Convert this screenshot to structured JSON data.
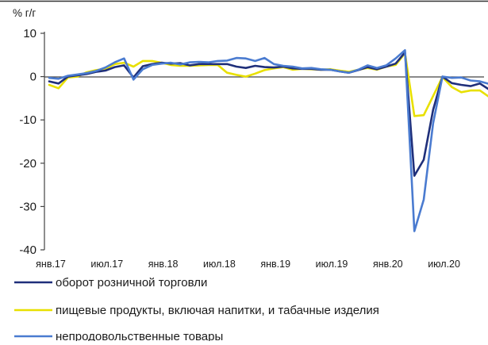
{
  "chart_data": {
    "type": "line",
    "unit_label": "% г/г",
    "y_ticks": [
      10,
      0,
      -10,
      -20,
      -30,
      -40
    ],
    "ylim": [
      -40,
      10
    ],
    "x_labels": [
      "янв.17",
      "июл.17",
      "янв.18",
      "июл.18",
      "янв.19",
      "июл.19",
      "янв.20",
      "июл.20"
    ],
    "x_start": "2017-01",
    "grid": false,
    "legend_position": "bottom",
    "series": [
      {
        "name": "оборот розничной торговли",
        "color": "#1f2f7a",
        "values": [
          -1.1,
          -1.6,
          0.0,
          0.3,
          0.6,
          1.1,
          1.4,
          2.2,
          2.6,
          -0.2,
          2.4,
          2.9,
          3.2,
          3.0,
          3.1,
          2.6,
          2.9,
          2.9,
          2.9,
          2.9,
          2.3,
          2.0,
          2.5,
          2.2,
          2.1,
          2.3,
          1.9,
          1.8,
          1.8,
          1.6,
          1.6,
          1.2,
          0.9,
          1.5,
          2.2,
          1.7,
          2.3,
          3.0,
          5.6,
          -22.9,
          -19.2,
          -7.7,
          0.0,
          -1.5,
          -1.9,
          -2.2,
          -1.6,
          -3.0
        ]
      },
      {
        "name": "пищевые продукты, включая напитки, и табачные изделия",
        "color": "#e8e000",
        "values": [
          -1.9,
          -2.7,
          -0.2,
          0.0,
          1.0,
          1.5,
          1.8,
          2.9,
          3.2,
          2.3,
          3.6,
          3.6,
          3.2,
          2.7,
          2.5,
          2.5,
          2.6,
          2.7,
          2.7,
          0.9,
          0.4,
          0.0,
          0.7,
          1.5,
          1.9,
          2.2,
          1.6,
          1.8,
          1.7,
          1.6,
          1.7,
          1.4,
          1.1,
          1.6,
          2.0,
          1.6,
          2.3,
          2.7,
          5.4,
          -9.1,
          -8.9,
          -4.5,
          -0.1,
          -2.4,
          -3.6,
          -3.2,
          -3.2,
          -4.7
        ]
      },
      {
        "name": "непродовольственные товары",
        "color": "#4a7bd0",
        "values": [
          -0.3,
          -0.5,
          0.2,
          0.5,
          0.8,
          1.3,
          2.1,
          3.3,
          4.2,
          -0.7,
          1.7,
          2.7,
          3.0,
          3.2,
          2.8,
          3.3,
          3.4,
          3.3,
          3.6,
          3.7,
          4.3,
          4.2,
          3.6,
          4.3,
          2.9,
          2.5,
          2.3,
          1.9,
          2.0,
          1.7,
          1.6,
          1.2,
          0.9,
          1.6,
          2.6,
          2.0,
          2.6,
          4.2,
          6.1,
          -35.7,
          -28.4,
          -10.8,
          0.0,
          -0.3,
          -0.2,
          -0.9,
          -1.1,
          -1.7
        ]
      }
    ]
  }
}
